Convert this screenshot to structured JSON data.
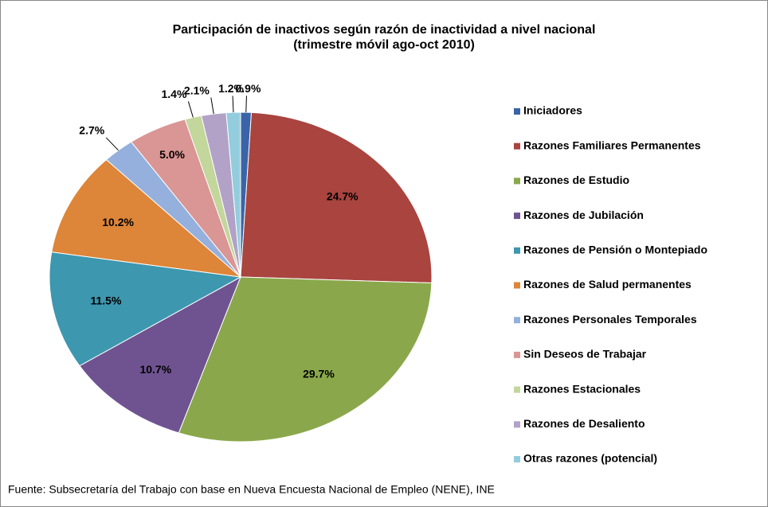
{
  "chart_data": {
    "type": "pie",
    "title": "Participación de inactivos según razón de inactividad a nivel nacional",
    "subtitle": "(trimestre móvil ago-oct 2010)",
    "source": "Fuente: Subsecretaría del Trabajo con base en Nueva Encuesta Nacional de Empleo (NENE), INE",
    "categories": [
      "Iniciadores",
      "Razones Familiares Permanentes",
      "Razones de Estudio",
      "Razones de Jubilación",
      "Razones de Pensión o Montepiado",
      "Razones de Salud permanentes",
      "Razones Personales Temporales",
      "Sin Deseos de Trabajar",
      "Razones Estacionales",
      "Razones de Desaliento",
      "Otras razones (potencial)"
    ],
    "values": [
      0.9,
      24.7,
      29.7,
      10.7,
      11.5,
      10.2,
      2.7,
      5.0,
      1.4,
      2.1,
      1.2
    ],
    "value_labels": [
      "0.9%",
      "24.7%",
      "29.7%",
      "10.7%",
      "11.5%",
      "10.2%",
      "2.7%",
      "5.0%",
      "1.4%",
      "2.1%",
      "1.2%"
    ],
    "colors": [
      "#3b64a8",
      "#a9443f",
      "#8aa84b",
      "#6f5391",
      "#3d97af",
      "#dd8538",
      "#95b0dc",
      "#d99694",
      "#c3d69b",
      "#b2a2c7",
      "#93cddd"
    ],
    "legend": "right"
  }
}
